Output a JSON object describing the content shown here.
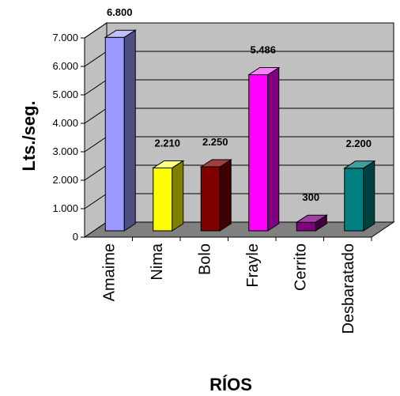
{
  "chart_data": {
    "type": "bar",
    "style": "3d-column",
    "title": "",
    "xlabel": "RÍOS",
    "ylabel": "Lts./seg.",
    "categories": [
      "Amaime",
      "Nima",
      "Bolo",
      "Frayle",
      "Cerrito",
      "Desbaratado"
    ],
    "values": [
      6800,
      2210,
      2250,
      5486,
      300,
      2200
    ],
    "value_labels": [
      "6.800",
      "2.210",
      "2.250",
      "5.486",
      "300",
      "2.200"
    ],
    "ylim": [
      0,
      7000
    ],
    "yticks": [
      0,
      1000,
      2000,
      3000,
      4000,
      5000,
      6000,
      7000
    ],
    "ytick_labels": [
      "0",
      "1.000",
      "2.000",
      "3.000",
      "4.000",
      "5.000",
      "6.000",
      "7.000"
    ],
    "grid": true,
    "legend": "none",
    "colors": {
      "bars": [
        {
          "front": "#9999ff",
          "side": "#4d4d80",
          "top": "#bfbfff"
        },
        {
          "front": "#ffff00",
          "side": "#808000",
          "top": "#ffff80"
        },
        {
          "front": "#800000",
          "side": "#400000",
          "top": "#a04040"
        },
        {
          "front": "#ff00ff",
          "side": "#800080",
          "top": "#ff80ff"
        },
        {
          "front": "#800080",
          "side": "#400040",
          "top": "#a040a0"
        },
        {
          "front": "#008080",
          "side": "#004040",
          "top": "#40a0a0"
        }
      ],
      "back_wall": "#c0c0c0",
      "floor": "#808080",
      "side_wall": "#c0c0c0"
    }
  }
}
